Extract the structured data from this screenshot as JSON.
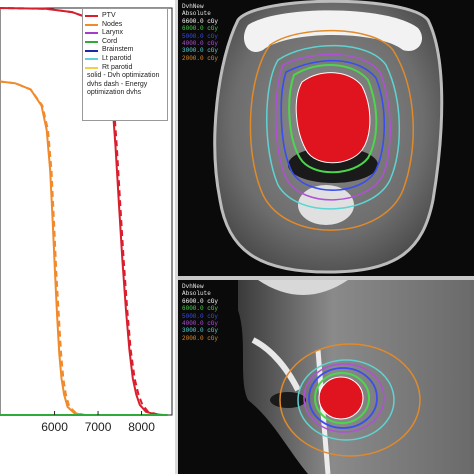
{
  "chart_data": {
    "type": "line",
    "xlim": [
      4700,
      8700
    ],
    "x_ticks": [
      6000,
      7000,
      8000
    ],
    "x_tick_labels": [
      "6000",
      "7000",
      "8000"
    ],
    "ylim": [
      0,
      100
    ],
    "grid": false,
    "legend_position": "top-right",
    "series": [
      {
        "name": "PTV",
        "color": "#d91e2e",
        "style": "solid",
        "x": [
          4700,
          5800,
          6400,
          6800,
          7000,
          7150,
          7250,
          7320,
          7400,
          7480,
          7560,
          7640,
          7720,
          7800,
          7880,
          7960,
          8100,
          8300,
          8500
        ],
        "y": [
          100,
          99.8,
          99,
          97.5,
          95,
          91,
          85,
          78,
          66,
          52,
          38,
          26,
          16,
          9,
          5,
          2.5,
          0.8,
          0.2,
          0
        ]
      },
      {
        "name": "PTV",
        "color": "#d91e2e",
        "style": "dashed",
        "x": [
          4700,
          5800,
          6400,
          6800,
          7000,
          7150,
          7270,
          7350,
          7430,
          7510,
          7590,
          7670,
          7750,
          7840,
          7930,
          8020,
          8150,
          8350,
          8500
        ],
        "y": [
          100,
          99.8,
          99,
          97.5,
          95,
          91,
          85,
          78,
          66,
          52,
          38,
          26,
          16,
          9,
          5,
          2.5,
          0.8,
          0.2,
          0
        ]
      },
      {
        "name": "Nodes",
        "color": "#f08a2c",
        "style": "solid",
        "x": [
          4700,
          5100,
          5450,
          5700,
          5820,
          5900,
          5960,
          6010,
          6060,
          6110,
          6160,
          6220,
          6300,
          6450,
          6650
        ],
        "y": [
          82,
          81.5,
          80,
          76,
          70,
          60,
          47,
          35,
          24,
          15,
          9,
          5,
          2,
          0.5,
          0
        ]
      },
      {
        "name": "Nodes",
        "color": "#f08a2c",
        "style": "dashed",
        "x": [
          4700,
          5100,
          5450,
          5720,
          5850,
          5930,
          5990,
          6040,
          6100,
          6150,
          6200,
          6260,
          6340,
          6490,
          6700
        ],
        "y": [
          82,
          81.5,
          80,
          76,
          70,
          60,
          47,
          35,
          24,
          15,
          9,
          5,
          2,
          0.5,
          0
        ]
      },
      {
        "name": "Cord",
        "color": "#2faa3a",
        "style": "solid",
        "x": [
          4700,
          8600
        ],
        "y": [
          0,
          0
        ]
      }
    ],
    "legend": [
      {
        "label": "PTV",
        "color": "#d91e2e"
      },
      {
        "label": "Nodes",
        "color": "#f08a2c"
      },
      {
        "label": "Larynx",
        "color": "#a23cc9"
      },
      {
        "label": "Cord",
        "color": "#2faa3a"
      },
      {
        "label": "Brainstem",
        "color": "#1c2aa6"
      },
      {
        "label": "Lt parotid",
        "color": "#5fd3d3"
      },
      {
        "label": "Rt parotid",
        "color": "#f2cf4a"
      }
    ],
    "legend_note": "solid - Dvh optimization dvhs dash - Energy optimization dvhs"
  },
  "ct_top": {
    "header": "DvhNew",
    "subheader": "Absolute",
    "dose_levels": [
      {
        "label": "6600.0 cGy",
        "color": "#ffffff"
      },
      {
        "label": "6000.0 cGy",
        "color": "#4cd64c"
      },
      {
        "label": "5000.0 cGy",
        "color": "#3b4cf0"
      },
      {
        "label": "4000.0 cGy",
        "color": "#b050d8"
      },
      {
        "label": "3000.0 cGy",
        "color": "#5fd3d3"
      },
      {
        "label": "2000.0 cGy",
        "color": "#e08a2a"
      }
    ]
  },
  "ct_bottom": {
    "header": "DvhNew",
    "subheader": "Absolute",
    "dose_levels": [
      {
        "label": "6600.0 cGy",
        "color": "#ffffff"
      },
      {
        "label": "6000.0 cGy",
        "color": "#4cd64c"
      },
      {
        "label": "5000.0 cGy",
        "color": "#3b4cf0"
      },
      {
        "label": "4000.0 cGy",
        "color": "#b050d8"
      },
      {
        "label": "3000.0 cGy",
        "color": "#5fd3d3"
      },
      {
        "label": "2000.0 cGy",
        "color": "#e08a2a"
      }
    ]
  }
}
